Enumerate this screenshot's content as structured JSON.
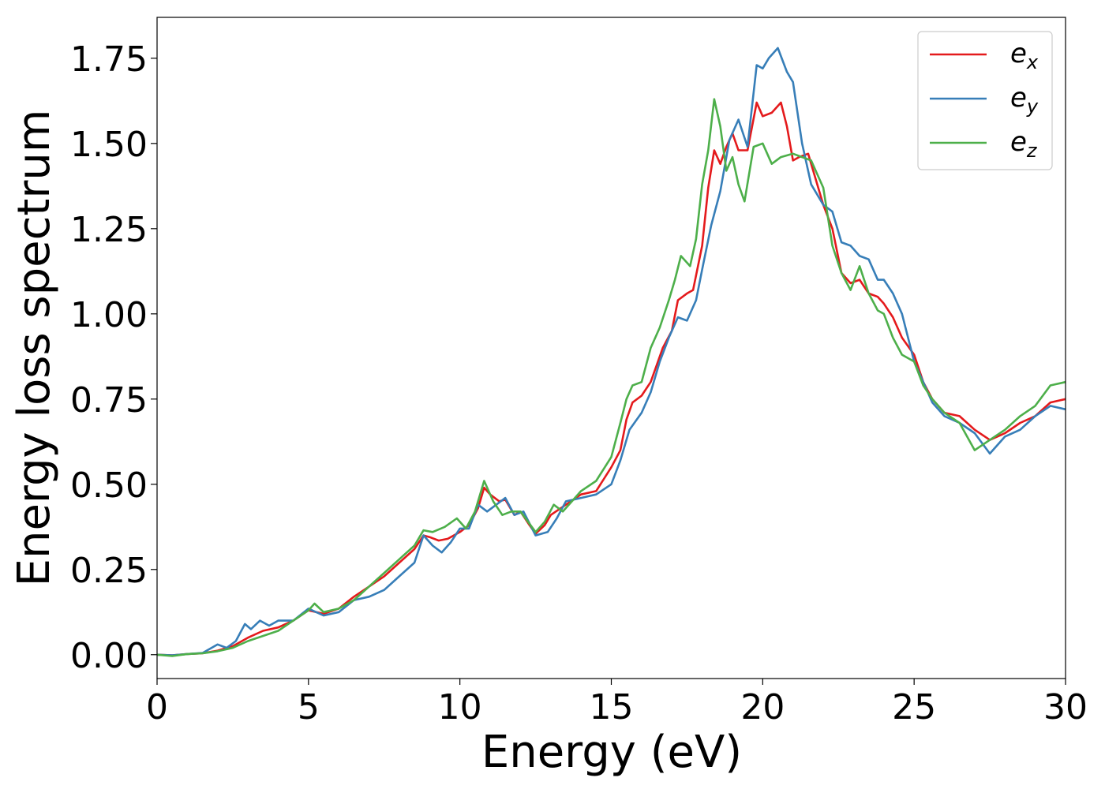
{
  "chart_data": {
    "type": "line",
    "xlabel": "Energy (eV)",
    "ylabel": "Energy loss spectrum",
    "xlim": [
      0,
      30
    ],
    "ylim": [
      -0.07,
      1.87
    ],
    "x_ticks": [
      0,
      5,
      10,
      15,
      20,
      25,
      30
    ],
    "x_tick_labels": [
      "0",
      "5",
      "10",
      "15",
      "20",
      "25",
      "30"
    ],
    "y_ticks": [
      0.0,
      0.25,
      0.5,
      0.75,
      1.0,
      1.25,
      1.5,
      1.75
    ],
    "y_tick_labels": [
      "0.00",
      "0.25",
      "0.50",
      "0.75",
      "1.00",
      "1.25",
      "1.50",
      "1.75"
    ],
    "grid": false,
    "legend_position": "top-right",
    "series": [
      {
        "name": "e",
        "subscript": "x",
        "color": "#e41a1c",
        "points": [
          [
            0,
            0
          ],
          [
            0.5,
            -0.002
          ],
          [
            1,
            0.002
          ],
          [
            1.5,
            0.004
          ],
          [
            2,
            0.012
          ],
          [
            2.5,
            0.025
          ],
          [
            3,
            0.05
          ],
          [
            3.5,
            0.07
          ],
          [
            4,
            0.08
          ],
          [
            4.5,
            0.1
          ],
          [
            5,
            0.13
          ],
          [
            5.5,
            0.12
          ],
          [
            6,
            0.135
          ],
          [
            6.5,
            0.17
          ],
          [
            7,
            0.2
          ],
          [
            7.5,
            0.23
          ],
          [
            8,
            0.27
          ],
          [
            8.5,
            0.31
          ],
          [
            8.8,
            0.35
          ],
          [
            9,
            0.345
          ],
          [
            9.3,
            0.335
          ],
          [
            9.6,
            0.34
          ],
          [
            10,
            0.36
          ],
          [
            10.3,
            0.38
          ],
          [
            10.6,
            0.43
          ],
          [
            10.8,
            0.49
          ],
          [
            11,
            0.47
          ],
          [
            11.3,
            0.45
          ],
          [
            11.5,
            0.455
          ],
          [
            11.8,
            0.41
          ],
          [
            12,
            0.42
          ],
          [
            12.3,
            0.38
          ],
          [
            12.5,
            0.355
          ],
          [
            12.8,
            0.38
          ],
          [
            13,
            0.41
          ],
          [
            13.5,
            0.44
          ],
          [
            14,
            0.47
          ],
          [
            14.5,
            0.48
          ],
          [
            15,
            0.55
          ],
          [
            15.3,
            0.6
          ],
          [
            15.5,
            0.69
          ],
          [
            15.7,
            0.74
          ],
          [
            16,
            0.76
          ],
          [
            16.3,
            0.8
          ],
          [
            16.5,
            0.85
          ],
          [
            16.7,
            0.9
          ],
          [
            17,
            0.95
          ],
          [
            17.2,
            1.04
          ],
          [
            17.5,
            1.06
          ],
          [
            17.7,
            1.07
          ],
          [
            18,
            1.2
          ],
          [
            18.2,
            1.37
          ],
          [
            18.4,
            1.48
          ],
          [
            18.6,
            1.44
          ],
          [
            18.8,
            1.49
          ],
          [
            19,
            1.53
          ],
          [
            19.2,
            1.48
          ],
          [
            19.5,
            1.48
          ],
          [
            19.8,
            1.62
          ],
          [
            20,
            1.58
          ],
          [
            20.3,
            1.59
          ],
          [
            20.6,
            1.62
          ],
          [
            20.8,
            1.55
          ],
          [
            21,
            1.45
          ],
          [
            21.2,
            1.46
          ],
          [
            21.5,
            1.47
          ],
          [
            22,
            1.32
          ],
          [
            22.3,
            1.25
          ],
          [
            22.6,
            1.12
          ],
          [
            22.9,
            1.09
          ],
          [
            23.2,
            1.1
          ],
          [
            23.5,
            1.06
          ],
          [
            23.8,
            1.05
          ],
          [
            24,
            1.03
          ],
          [
            24.3,
            0.99
          ],
          [
            24.6,
            0.93
          ],
          [
            25,
            0.88
          ],
          [
            25.3,
            0.8
          ],
          [
            25.6,
            0.75
          ],
          [
            26,
            0.71
          ],
          [
            26.5,
            0.7
          ],
          [
            27,
            0.66
          ],
          [
            27.5,
            0.63
          ],
          [
            28,
            0.65
          ],
          [
            28.5,
            0.68
          ],
          [
            29,
            0.7
          ],
          [
            29.5,
            0.74
          ],
          [
            30,
            0.75
          ]
        ]
      },
      {
        "name": "e",
        "subscript": "y",
        "color": "#377eb8",
        "points": [
          [
            0,
            0
          ],
          [
            0.5,
            -0.002
          ],
          [
            1,
            0.002
          ],
          [
            1.5,
            0.005
          ],
          [
            2,
            0.03
          ],
          [
            2.3,
            0.02
          ],
          [
            2.6,
            0.04
          ],
          [
            2.9,
            0.09
          ],
          [
            3.1,
            0.075
          ],
          [
            3.4,
            0.1
          ],
          [
            3.7,
            0.085
          ],
          [
            4,
            0.1
          ],
          [
            4.5,
            0.1
          ],
          [
            5,
            0.135
          ],
          [
            5.5,
            0.115
          ],
          [
            6,
            0.125
          ],
          [
            6.5,
            0.16
          ],
          [
            7,
            0.17
          ],
          [
            7.5,
            0.19
          ],
          [
            8,
            0.23
          ],
          [
            8.5,
            0.27
          ],
          [
            8.8,
            0.35
          ],
          [
            9.1,
            0.32
          ],
          [
            9.4,
            0.3
          ],
          [
            9.7,
            0.33
          ],
          [
            10,
            0.37
          ],
          [
            10.3,
            0.37
          ],
          [
            10.6,
            0.44
          ],
          [
            10.9,
            0.42
          ],
          [
            11.2,
            0.44
          ],
          [
            11.5,
            0.46
          ],
          [
            11.8,
            0.41
          ],
          [
            12.1,
            0.42
          ],
          [
            12.5,
            0.35
          ],
          [
            12.9,
            0.36
          ],
          [
            13.2,
            0.4
          ],
          [
            13.5,
            0.45
          ],
          [
            14,
            0.46
          ],
          [
            14.5,
            0.47
          ],
          [
            15,
            0.5
          ],
          [
            15.3,
            0.57
          ],
          [
            15.6,
            0.66
          ],
          [
            16,
            0.71
          ],
          [
            16.3,
            0.77
          ],
          [
            16.6,
            0.86
          ],
          [
            16.9,
            0.93
          ],
          [
            17.2,
            0.99
          ],
          [
            17.5,
            0.98
          ],
          [
            17.8,
            1.04
          ],
          [
            18,
            1.13
          ],
          [
            18.3,
            1.26
          ],
          [
            18.6,
            1.36
          ],
          [
            18.9,
            1.51
          ],
          [
            19.2,
            1.57
          ],
          [
            19.5,
            1.49
          ],
          [
            19.8,
            1.73
          ],
          [
            20,
            1.72
          ],
          [
            20.2,
            1.75
          ],
          [
            20.5,
            1.78
          ],
          [
            20.8,
            1.71
          ],
          [
            21,
            1.68
          ],
          [
            21.3,
            1.5
          ],
          [
            21.6,
            1.38
          ],
          [
            22,
            1.32
          ],
          [
            22.3,
            1.3
          ],
          [
            22.6,
            1.21
          ],
          [
            22.9,
            1.2
          ],
          [
            23.2,
            1.17
          ],
          [
            23.5,
            1.16
          ],
          [
            23.8,
            1.1
          ],
          [
            24,
            1.1
          ],
          [
            24.3,
            1.06
          ],
          [
            24.6,
            1.0
          ],
          [
            25,
            0.86
          ],
          [
            25.3,
            0.8
          ],
          [
            25.6,
            0.74
          ],
          [
            26,
            0.7
          ],
          [
            26.5,
            0.68
          ],
          [
            27,
            0.65
          ],
          [
            27.5,
            0.59
          ],
          [
            28,
            0.64
          ],
          [
            28.5,
            0.66
          ],
          [
            29,
            0.7
          ],
          [
            29.5,
            0.73
          ],
          [
            30,
            0.72
          ]
        ]
      },
      {
        "name": "e",
        "subscript": "z",
        "color": "#4daf4a",
        "points": [
          [
            0,
            0
          ],
          [
            0.5,
            -0.004
          ],
          [
            1,
            0.002
          ],
          [
            1.5,
            0.004
          ],
          [
            2,
            0.01
          ],
          [
            2.5,
            0.02
          ],
          [
            3,
            0.04
          ],
          [
            3.5,
            0.055
          ],
          [
            4,
            0.07
          ],
          [
            4.5,
            0.1
          ],
          [
            5,
            0.13
          ],
          [
            5.2,
            0.15
          ],
          [
            5.5,
            0.125
          ],
          [
            6,
            0.135
          ],
          [
            6.5,
            0.16
          ],
          [
            7,
            0.2
          ],
          [
            7.5,
            0.24
          ],
          [
            8,
            0.28
          ],
          [
            8.5,
            0.32
          ],
          [
            8.8,
            0.365
          ],
          [
            9.1,
            0.36
          ],
          [
            9.5,
            0.375
          ],
          [
            9.9,
            0.4
          ],
          [
            10.2,
            0.37
          ],
          [
            10.5,
            0.42
          ],
          [
            10.8,
            0.51
          ],
          [
            11.1,
            0.45
          ],
          [
            11.4,
            0.41
          ],
          [
            11.7,
            0.42
          ],
          [
            12,
            0.42
          ],
          [
            12.5,
            0.36
          ],
          [
            12.8,
            0.39
          ],
          [
            13.1,
            0.44
          ],
          [
            13.4,
            0.42
          ],
          [
            13.7,
            0.45
          ],
          [
            14,
            0.48
          ],
          [
            14.5,
            0.51
          ],
          [
            15,
            0.58
          ],
          [
            15.3,
            0.68
          ],
          [
            15.5,
            0.75
          ],
          [
            15.7,
            0.79
          ],
          [
            16,
            0.8
          ],
          [
            16.3,
            0.9
          ],
          [
            16.6,
            0.96
          ],
          [
            16.9,
            1.04
          ],
          [
            17.1,
            1.1
          ],
          [
            17.3,
            1.17
          ],
          [
            17.6,
            1.14
          ],
          [
            17.8,
            1.22
          ],
          [
            18,
            1.38
          ],
          [
            18.2,
            1.48
          ],
          [
            18.4,
            1.63
          ],
          [
            18.6,
            1.55
          ],
          [
            18.8,
            1.42
          ],
          [
            19,
            1.46
          ],
          [
            19.2,
            1.38
          ],
          [
            19.4,
            1.33
          ],
          [
            19.7,
            1.49
          ],
          [
            20,
            1.5
          ],
          [
            20.3,
            1.44
          ],
          [
            20.6,
            1.46
          ],
          [
            21,
            1.47
          ],
          [
            21.3,
            1.46
          ],
          [
            21.6,
            1.45
          ],
          [
            22,
            1.37
          ],
          [
            22.3,
            1.2
          ],
          [
            22.6,
            1.12
          ],
          [
            22.9,
            1.07
          ],
          [
            23.2,
            1.14
          ],
          [
            23.5,
            1.06
          ],
          [
            23.8,
            1.01
          ],
          [
            24,
            1.0
          ],
          [
            24.3,
            0.93
          ],
          [
            24.6,
            0.88
          ],
          [
            25,
            0.86
          ],
          [
            25.3,
            0.79
          ],
          [
            25.6,
            0.75
          ],
          [
            26,
            0.71
          ],
          [
            26.5,
            0.68
          ],
          [
            27,
            0.6
          ],
          [
            27.5,
            0.63
          ],
          [
            28,
            0.66
          ],
          [
            28.5,
            0.7
          ],
          [
            29,
            0.73
          ],
          [
            29.5,
            0.79
          ],
          [
            30,
            0.8
          ]
        ]
      }
    ]
  }
}
